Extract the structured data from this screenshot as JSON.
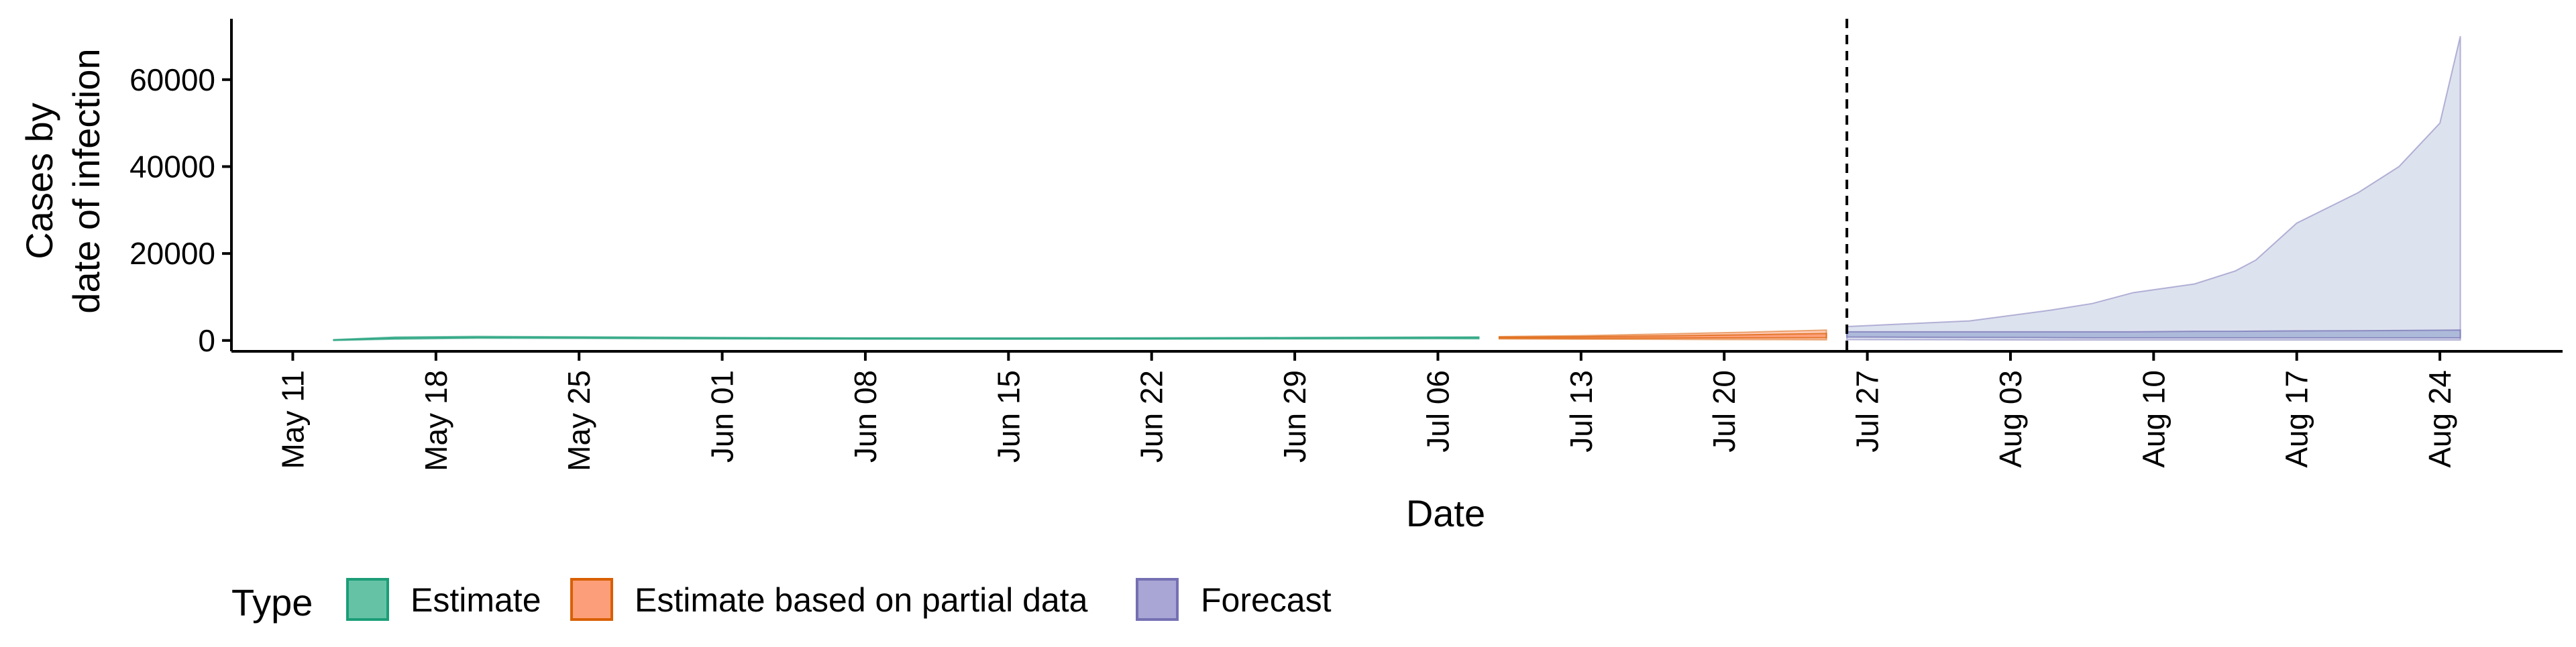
{
  "chart_data": {
    "type": "area",
    "title": "",
    "xlabel": "Date",
    "ylabel": [
      "Cases by",
      "date of infection"
    ],
    "x_range": [
      "2020-05-08",
      "2020-08-30"
    ],
    "ylim": [
      -2500,
      74000
    ],
    "x_ticks": [
      {
        "date": "2020-05-11",
        "label": "May 11"
      },
      {
        "date": "2020-05-18",
        "label": "May 18"
      },
      {
        "date": "2020-05-25",
        "label": "May 25"
      },
      {
        "date": "2020-06-01",
        "label": "Jun 01"
      },
      {
        "date": "2020-06-08",
        "label": "Jun 08"
      },
      {
        "date": "2020-06-15",
        "label": "Jun 15"
      },
      {
        "date": "2020-06-22",
        "label": "Jun 22"
      },
      {
        "date": "2020-06-29",
        "label": "Jun 29"
      },
      {
        "date": "2020-07-06",
        "label": "Jul 06"
      },
      {
        "date": "2020-07-13",
        "label": "Jul 13"
      },
      {
        "date": "2020-07-20",
        "label": "Jul 20"
      },
      {
        "date": "2020-07-27",
        "label": "Jul 27"
      },
      {
        "date": "2020-08-03",
        "label": "Aug 03"
      },
      {
        "date": "2020-08-10",
        "label": "Aug 10"
      },
      {
        "date": "2020-08-17",
        "label": "Aug 17"
      },
      {
        "date": "2020-08-24",
        "label": "Aug 24"
      }
    ],
    "y_ticks": [
      0,
      20000,
      40000,
      60000
    ],
    "grid": false,
    "reference_line": {
      "date": "2020-07-26",
      "style": "dashed"
    },
    "legend": {
      "position": "bottom-left",
      "title": "Type",
      "items": [
        "Estimate",
        "Estimate based on partial data",
        "Forecast"
      ]
    },
    "series": [
      {
        "name": "Estimate",
        "color": "#1b9e77",
        "fill": "#66c2a5",
        "points": [
          {
            "x": "2020-05-13",
            "outer": [
              0,
              200
            ],
            "inner": [
              50,
              120
            ]
          },
          {
            "x": "2020-05-16",
            "outer": [
              300,
              800
            ],
            "inner": [
              450,
              650
            ]
          },
          {
            "x": "2020-05-20",
            "outer": [
              500,
              950
            ],
            "inner": [
              650,
              800
            ]
          },
          {
            "x": "2020-05-25",
            "outer": [
              450,
              850
            ],
            "inner": [
              600,
              720
            ]
          },
          {
            "x": "2020-06-01",
            "outer": [
              350,
              700
            ],
            "inner": [
              450,
              600
            ]
          },
          {
            "x": "2020-06-08",
            "outer": [
              300,
              600
            ],
            "inner": [
              400,
              520
            ]
          },
          {
            "x": "2020-06-15",
            "outer": [
              280,
              580
            ],
            "inner": [
              380,
              500
            ]
          },
          {
            "x": "2020-06-22",
            "outer": [
              300,
              620
            ],
            "inner": [
              400,
              530
            ]
          },
          {
            "x": "2020-06-29",
            "outer": [
              350,
              700
            ],
            "inner": [
              450,
              600
            ]
          },
          {
            "x": "2020-07-06",
            "outer": [
              400,
              800
            ],
            "inner": [
              520,
              700
            ]
          },
          {
            "x": "2020-07-08",
            "outer": [
              380,
              820
            ],
            "inner": [
              500,
              720
            ]
          }
        ]
      },
      {
        "name": "Estimate based on partial data",
        "color": "#d95f02",
        "fill": "#fc8d62",
        "points": [
          {
            "x": "2020-07-09",
            "outer": [
              350,
              900
            ],
            "inner": [
              500,
              750
            ]
          },
          {
            "x": "2020-07-13",
            "outer": [
              300,
              1100
            ],
            "inner": [
              500,
              850
            ]
          },
          {
            "x": "2020-07-17",
            "outer": [
              250,
              1500
            ],
            "inner": [
              550,
              1050
            ]
          },
          {
            "x": "2020-07-21",
            "outer": [
              200,
              1900
            ],
            "inner": [
              600,
              1300
            ]
          },
          {
            "x": "2020-07-25",
            "outer": [
              150,
              2400
            ],
            "inner": [
              650,
              1600
            ]
          }
        ]
      },
      {
        "name": "Forecast",
        "color": "#7570b3",
        "fill": "#8da0cb",
        "points": [
          {
            "x": "2020-07-26",
            "outer": [
              200,
              3200
            ],
            "inner": [
              800,
              2000
            ]
          },
          {
            "x": "2020-08-01",
            "outer": [
              150,
              4500
            ],
            "inner": [
              700,
              2000
            ]
          },
          {
            "x": "2020-08-05",
            "outer": [
              100,
              7000
            ],
            "inner": [
              650,
              2000
            ]
          },
          {
            "x": "2020-08-07",
            "outer": [
              100,
              8500
            ],
            "inner": [
              600,
              2000
            ]
          },
          {
            "x": "2020-08-09",
            "outer": [
              100,
              11000
            ],
            "inner": [
              600,
              2000
            ]
          },
          {
            "x": "2020-08-12",
            "outer": [
              100,
              13000
            ],
            "inner": [
              600,
              2100
            ]
          },
          {
            "x": "2020-08-14",
            "outer": [
              100,
              16000
            ],
            "inner": [
              600,
              2100
            ]
          },
          {
            "x": "2020-08-15",
            "outer": [
              100,
              18500
            ],
            "inner": [
              600,
              2150
            ]
          },
          {
            "x": "2020-08-17",
            "outer": [
              100,
              27000
            ],
            "inner": [
              600,
              2200
            ]
          },
          {
            "x": "2020-08-20",
            "outer": [
              100,
              34000
            ],
            "inner": [
              600,
              2250
            ]
          },
          {
            "x": "2020-08-22",
            "outer": [
              100,
              40000
            ],
            "inner": [
              600,
              2300
            ]
          },
          {
            "x": "2020-08-24",
            "outer": [
              100,
              50000
            ],
            "inner": [
              600,
              2350
            ]
          },
          {
            "x": "2020-08-25",
            "outer": [
              100,
              70000
            ],
            "inner": [
              600,
              2400
            ]
          }
        ]
      }
    ]
  }
}
